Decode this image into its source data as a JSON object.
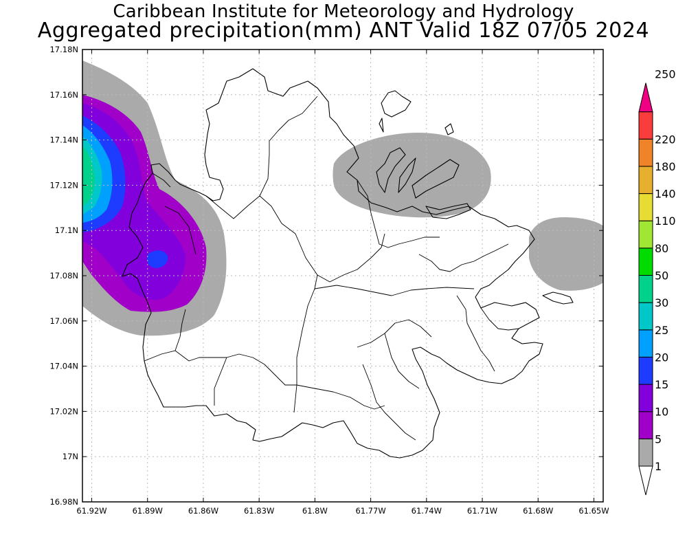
{
  "title": {
    "line1": "Caribbean Institute for Meteorology and Hydrology",
    "line2": "Aggregated precipitation(mm) ANT Valid 18Z 07/05 2024"
  },
  "map": {
    "region": "Antigua",
    "lon_range": [
      -61.925,
      -61.645
    ],
    "lat_range": [
      16.98,
      17.18
    ],
    "grid": true,
    "x_ticks": [
      {
        "value": -61.92,
        "label": "61.92W"
      },
      {
        "value": -61.89,
        "label": "61.89W"
      },
      {
        "value": -61.86,
        "label": "61.86W"
      },
      {
        "value": -61.83,
        "label": "61.83W"
      },
      {
        "value": -61.8,
        "label": "61.8W"
      },
      {
        "value": -61.77,
        "label": "61.77W"
      },
      {
        "value": -61.74,
        "label": "61.74W"
      },
      {
        "value": -61.71,
        "label": "61.71W"
      },
      {
        "value": -61.68,
        "label": "61.68W"
      },
      {
        "value": -61.65,
        "label": "61.65W"
      }
    ],
    "y_ticks": [
      {
        "value": 17.18,
        "label": "17.18N"
      },
      {
        "value": 17.16,
        "label": "17.16N"
      },
      {
        "value": 17.14,
        "label": "17.14N"
      },
      {
        "value": 17.12,
        "label": "17.12N"
      },
      {
        "value": 17.1,
        "label": "17.1N"
      },
      {
        "value": 17.08,
        "label": "17.08N"
      },
      {
        "value": 17.06,
        "label": "17.06N"
      },
      {
        "value": 17.04,
        "label": "17.04N"
      },
      {
        "value": 17.02,
        "label": "17.02N"
      },
      {
        "value": 17.0,
        "label": "17N"
      },
      {
        "value": 16.98,
        "label": "16.98N"
      }
    ]
  },
  "colorbar": {
    "levels": [
      {
        "label": "1",
        "color": "#aaaaaa"
      },
      {
        "label": "5",
        "color": "#a000c8"
      },
      {
        "label": "10",
        "color": "#8200dc"
      },
      {
        "label": "15",
        "color": "#1e3cff"
      },
      {
        "label": "20",
        "color": "#00a0ff"
      },
      {
        "label": "25",
        "color": "#00c8c8"
      },
      {
        "label": "30",
        "color": "#00d28c"
      },
      {
        "label": "50",
        "color": "#00dc00"
      },
      {
        "label": "80",
        "color": "#a0e632"
      },
      {
        "label": "110",
        "color": "#e6dc32"
      },
      {
        "label": "140",
        "color": "#e6af2d"
      },
      {
        "label": "180",
        "color": "#f08228"
      },
      {
        "label": "220",
        "color": "#fa3c3c"
      },
      {
        "label": "250",
        "color": "#f00082"
      }
    ],
    "below_color": "#ffffff"
  },
  "precip_areas": [
    {
      "name": "west-coast",
      "levels": [
        "1",
        "5",
        "10",
        "15",
        "20",
        "25"
      ]
    },
    {
      "name": "north-east",
      "levels": [
        "1"
      ]
    },
    {
      "name": "east-edge",
      "levels": [
        "1"
      ]
    }
  ]
}
